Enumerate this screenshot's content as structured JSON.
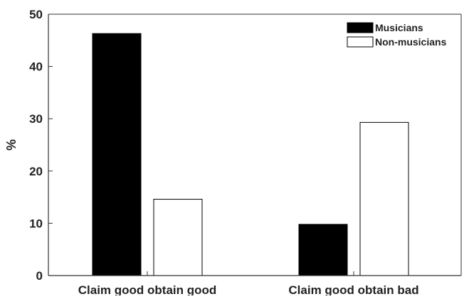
{
  "chart_data": {
    "type": "bar",
    "title": "",
    "xlabel": "",
    "ylabel": "%",
    "ylim": [
      0,
      50
    ],
    "yticks": [
      0,
      10,
      20,
      30,
      40,
      50
    ],
    "categories": [
      "Claim good obtain good",
      "Claim good obtain bad"
    ],
    "series": [
      {
        "name": "Musicians",
        "values": [
          46.3,
          9.8
        ],
        "color": "#000000"
      },
      {
        "name": "Non-musicians",
        "values": [
          14.6,
          29.3
        ],
        "color": "#ffffff"
      }
    ],
    "grid": false,
    "legend_position": "top-right"
  }
}
